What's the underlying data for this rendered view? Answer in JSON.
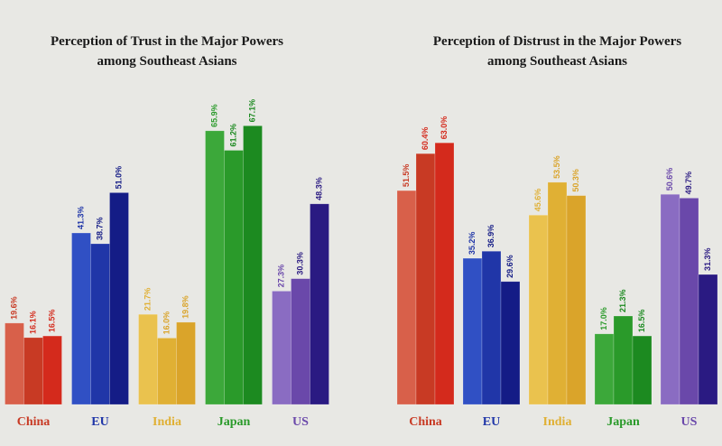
{
  "chart_data": [
    {
      "type": "bar",
      "title": [
        "Perception of Trust in the Major Powers",
        "among Southeast Asians"
      ],
      "categories": [
        "China",
        "EU",
        "India",
        "Japan",
        "US"
      ],
      "values": [
        [
          19.6,
          16.1,
          16.5
        ],
        [
          41.3,
          38.7,
          51.0
        ],
        [
          21.7,
          16.0,
          19.8
        ],
        [
          65.9,
          61.2,
          67.1
        ],
        [
          27.3,
          30.3,
          48.3
        ]
      ],
      "value_labels": [
        [
          "19.6%",
          "16.1%",
          "16.5%"
        ],
        [
          "41.3%",
          "38.7%",
          "51.0%"
        ],
        [
          "21.7%",
          "16.0%",
          "19.8%"
        ],
        [
          "65.9%",
          "61.2%",
          "67.1%"
        ],
        [
          "27.3%",
          "30.3%",
          "48.3%"
        ]
      ],
      "colors": [
        [
          "#d8604a",
          "#c83a24",
          "#d42a1c"
        ],
        [
          "#3050c4",
          "#2036a8",
          "#141c86"
        ],
        [
          "#eac24e",
          "#e0b034",
          "#daa42a"
        ],
        [
          "#3ca83a",
          "#2a9a2a",
          "#1c8a20"
        ],
        [
          "#8a6cc2",
          "#6a48aa",
          "#2a1a82"
        ]
      ],
      "ylim": [
        0,
        70
      ]
    },
    {
      "type": "bar",
      "title": [
        "Perception of Distrust in the Major Powers",
        "among Southeast Asians"
      ],
      "categories": [
        "China",
        "EU",
        "India",
        "Japan",
        "US"
      ],
      "values": [
        [
          51.5,
          60.4,
          63.0
        ],
        [
          35.2,
          36.9,
          29.6
        ],
        [
          45.6,
          53.5,
          50.3
        ],
        [
          17.0,
          21.3,
          16.5
        ],
        [
          50.6,
          49.7,
          31.3
        ]
      ],
      "value_labels": [
        [
          "51.5%",
          "60.4%",
          "63.0%"
        ],
        [
          "35.2%",
          "36.9%",
          "29.6%"
        ],
        [
          "45.6%",
          "53.5%",
          "50.3%"
        ],
        [
          "17.0%",
          "21.3%",
          "16.5%"
        ],
        [
          "50.6%",
          "49.7%",
          "31.3%"
        ]
      ],
      "colors": [
        [
          "#d8604a",
          "#c83a24",
          "#d42a1c"
        ],
        [
          "#3050c4",
          "#2036a8",
          "#141c86"
        ],
        [
          "#eac24e",
          "#e0b034",
          "#daa42a"
        ],
        [
          "#3ca83a",
          "#2a9a2a",
          "#1c8a20"
        ],
        [
          "#8a6cc2",
          "#6a48aa",
          "#2a1a82"
        ]
      ],
      "ylim": [
        0,
        70
      ]
    }
  ]
}
